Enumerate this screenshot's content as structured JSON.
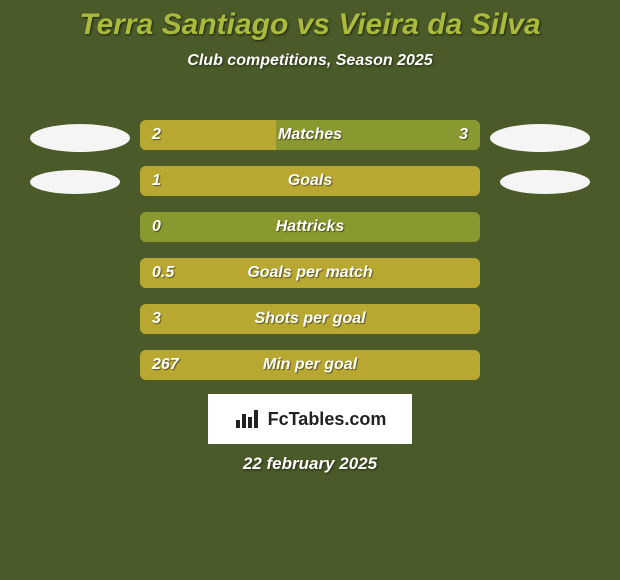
{
  "colors": {
    "background": "#4a5a28",
    "title": "#aaba3a",
    "subtitle_text": "#ffffff",
    "bar_track": "#89992f",
    "bar_fill": "#b8a832",
    "value_text": "#ffffff",
    "metric_text": "#ffffff",
    "avatar_fill": "#f5f5f5",
    "footer_text": "#ffffff"
  },
  "typography": {
    "title_size": 30,
    "subtitle_size": 16,
    "value_size": 16,
    "metric_size": 16,
    "footer_size": 17
  },
  "title": "Terra Santiago vs Vieira da Silva",
  "subtitle": "Club competitions, Season 2025",
  "players": {
    "left": "Terra Santiago",
    "right": "Vieira da Silva"
  },
  "metrics": [
    {
      "label": "Matches",
      "left_value": "2",
      "right_value": "3",
      "left_num": 2,
      "right_num": 3,
      "show_avatars": true,
      "avatar_w": 100,
      "avatar_h": 28
    },
    {
      "label": "Goals",
      "left_value": "1",
      "right_value": "",
      "left_num": 1,
      "right_num": 0,
      "show_avatars": true,
      "avatar_w": 90,
      "avatar_h": 24
    },
    {
      "label": "Hattricks",
      "left_value": "0",
      "right_value": "",
      "left_num": 0,
      "right_num": 0,
      "show_avatars": false
    },
    {
      "label": "Goals per match",
      "left_value": "0.5",
      "right_value": "",
      "left_num": 0.5,
      "right_num": 0,
      "show_avatars": false
    },
    {
      "label": "Shots per goal",
      "left_value": "3",
      "right_value": "",
      "left_num": 3,
      "right_num": 0,
      "show_avatars": false
    },
    {
      "label": "Min per goal",
      "left_value": "267",
      "right_value": "",
      "left_num": 267,
      "right_num": 0,
      "show_avatars": false
    }
  ],
  "logo_text": "FcTables.com",
  "footer_date": "22 february 2025"
}
